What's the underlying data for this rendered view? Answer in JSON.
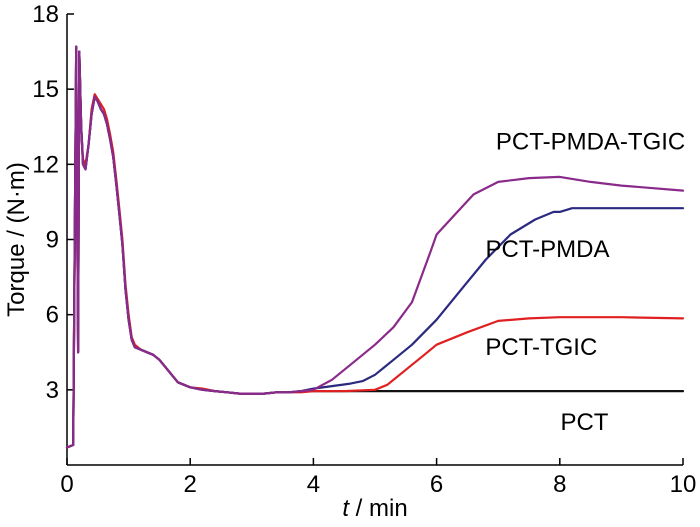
{
  "chart_data": {
    "type": "line",
    "title": "",
    "xlabel_italic": "t",
    "xlabel_rest": " / min",
    "ylabel": "Torque / (N·m)",
    "xlim": [
      0,
      10
    ],
    "ylim": [
      0,
      18
    ],
    "xticks": [
      0,
      2,
      4,
      6,
      8,
      10
    ],
    "yticks": [
      3,
      6,
      9,
      12,
      15,
      18
    ],
    "xtick_labels": [
      "0",
      "2",
      "4",
      "6",
      "8",
      "10"
    ],
    "ytick_labels": [
      "3",
      "6",
      "9",
      "12",
      "15",
      "18"
    ],
    "grid": false,
    "legend": "inline labels",
    "series": [
      {
        "name": "PCT",
        "color": "#111111",
        "label": "PCT",
        "x": [
          0,
          0.1,
          0.15,
          0.18,
          0.2,
          0.23,
          0.26,
          0.3,
          0.35,
          0.4,
          0.45,
          0.5,
          0.55,
          0.6,
          0.65,
          0.7,
          0.75,
          0.8,
          0.85,
          0.9,
          0.95,
          1.0,
          1.05,
          1.1,
          1.2,
          1.3,
          1.4,
          1.5,
          1.6,
          1.7,
          1.8,
          1.9,
          2.0,
          2.2,
          2.4,
          2.6,
          2.8,
          3.0,
          3.2,
          3.4,
          3.6,
          3.8,
          4.0,
          5.0,
          6.0,
          7.0,
          8.0,
          9.0,
          10.0
        ],
        "y": [
          0.7,
          0.8,
          16.7,
          4.5,
          16.5,
          13.5,
          12.0,
          11.8,
          12.8,
          14.0,
          14.7,
          14.5,
          14.2,
          14.0,
          13.6,
          13.0,
          12.3,
          11.2,
          10.0,
          8.8,
          7.0,
          5.8,
          5.0,
          4.7,
          4.6,
          4.5,
          4.4,
          4.2,
          3.9,
          3.6,
          3.3,
          3.2,
          3.1,
          3.0,
          2.95,
          2.9,
          2.85,
          2.85,
          2.85,
          2.9,
          2.9,
          2.95,
          2.95,
          2.95,
          2.95,
          2.95,
          2.95,
          2.95,
          2.95
        ]
      },
      {
        "name": "PCT-TGIC",
        "color": "#e02020",
        "label": "PCT-TGIC",
        "x": [
          0,
          0.1,
          0.15,
          0.18,
          0.2,
          0.23,
          0.26,
          0.3,
          0.35,
          0.4,
          0.45,
          0.5,
          0.55,
          0.6,
          0.65,
          0.7,
          0.75,
          0.8,
          0.85,
          0.9,
          0.95,
          1.0,
          1.05,
          1.1,
          1.2,
          1.3,
          1.4,
          1.5,
          1.6,
          1.7,
          1.8,
          1.9,
          2.0,
          2.2,
          2.4,
          2.6,
          2.8,
          3.0,
          3.2,
          3.4,
          3.6,
          3.8,
          4.0,
          4.5,
          5.0,
          5.2,
          5.5,
          5.8,
          6.0,
          6.5,
          7.0,
          7.5,
          8.0,
          9.0,
          10.0
        ],
        "y": [
          0.7,
          0.8,
          16.7,
          4.5,
          16.5,
          13.5,
          12.2,
          12.0,
          12.8,
          14.2,
          14.8,
          14.6,
          14.4,
          14.2,
          13.8,
          13.2,
          12.5,
          11.4,
          10.2,
          9.0,
          7.2,
          6.0,
          5.1,
          4.8,
          4.6,
          4.5,
          4.4,
          4.2,
          3.9,
          3.6,
          3.3,
          3.2,
          3.1,
          3.05,
          2.95,
          2.9,
          2.85,
          2.85,
          2.85,
          2.9,
          2.9,
          2.9,
          2.95,
          2.95,
          3.0,
          3.2,
          3.8,
          4.4,
          4.8,
          5.3,
          5.75,
          5.85,
          5.9,
          5.9,
          5.85
        ]
      },
      {
        "name": "PCT-PMDA",
        "color": "#2a2a80",
        "label": "PCT-PMDA",
        "x": [
          0,
          0.1,
          0.15,
          0.18,
          0.2,
          0.23,
          0.26,
          0.3,
          0.35,
          0.4,
          0.45,
          0.5,
          0.55,
          0.6,
          0.65,
          0.7,
          0.75,
          0.8,
          0.85,
          0.9,
          0.95,
          1.0,
          1.05,
          1.1,
          1.2,
          1.3,
          1.4,
          1.5,
          1.6,
          1.7,
          1.8,
          1.9,
          2.0,
          2.2,
          2.4,
          2.6,
          2.8,
          3.0,
          3.2,
          3.4,
          3.6,
          3.8,
          4.0,
          4.3,
          4.6,
          4.8,
          5.0,
          5.3,
          5.6,
          6.0,
          6.4,
          6.8,
          7.2,
          7.6,
          7.9,
          8.0,
          8.2,
          9.0,
          10.0
        ],
        "y": [
          0.7,
          0.8,
          16.7,
          4.5,
          16.5,
          13.5,
          12.0,
          11.8,
          12.8,
          14.0,
          14.7,
          14.5,
          14.2,
          14.0,
          13.6,
          13.0,
          12.3,
          11.2,
          10.0,
          8.8,
          7.0,
          5.8,
          5.0,
          4.7,
          4.6,
          4.5,
          4.4,
          4.2,
          3.9,
          3.6,
          3.3,
          3.2,
          3.1,
          3.0,
          2.95,
          2.9,
          2.85,
          2.85,
          2.85,
          2.9,
          2.9,
          2.95,
          3.05,
          3.15,
          3.25,
          3.35,
          3.6,
          4.2,
          4.8,
          5.8,
          7.0,
          8.2,
          9.2,
          9.8,
          10.1,
          10.1,
          10.25,
          10.25,
          10.25
        ]
      },
      {
        "name": "PCT-PMDA-TGIC",
        "color": "#8a2a8a",
        "label": "PCT-PMDA-TGIC",
        "x": [
          0,
          0.1,
          0.15,
          0.18,
          0.2,
          0.23,
          0.26,
          0.3,
          0.35,
          0.4,
          0.45,
          0.5,
          0.55,
          0.6,
          0.65,
          0.7,
          0.75,
          0.8,
          0.85,
          0.9,
          0.95,
          1.0,
          1.05,
          1.1,
          1.2,
          1.3,
          1.4,
          1.5,
          1.6,
          1.7,
          1.8,
          1.9,
          2.0,
          2.2,
          2.4,
          2.6,
          2.8,
          3.0,
          3.2,
          3.4,
          3.6,
          3.8,
          4.0,
          4.3,
          4.6,
          5.0,
          5.3,
          5.6,
          5.9,
          6.0,
          6.3,
          6.6,
          7.0,
          7.5,
          8.0,
          8.5,
          9.0,
          10.0
        ],
        "y": [
          0.7,
          0.8,
          16.7,
          4.5,
          16.5,
          13.5,
          12.0,
          11.8,
          12.8,
          14.0,
          14.7,
          14.5,
          14.2,
          14.0,
          13.6,
          13.0,
          12.3,
          11.2,
          10.0,
          8.8,
          7.0,
          5.8,
          5.0,
          4.7,
          4.6,
          4.5,
          4.4,
          4.2,
          3.9,
          3.6,
          3.3,
          3.2,
          3.1,
          3.0,
          2.95,
          2.9,
          2.85,
          2.85,
          2.85,
          2.9,
          2.9,
          2.95,
          3.0,
          3.4,
          4.0,
          4.8,
          5.5,
          6.5,
          8.5,
          9.2,
          10.0,
          10.8,
          11.3,
          11.45,
          11.5,
          11.3,
          11.15,
          10.95
        ]
      }
    ]
  }
}
